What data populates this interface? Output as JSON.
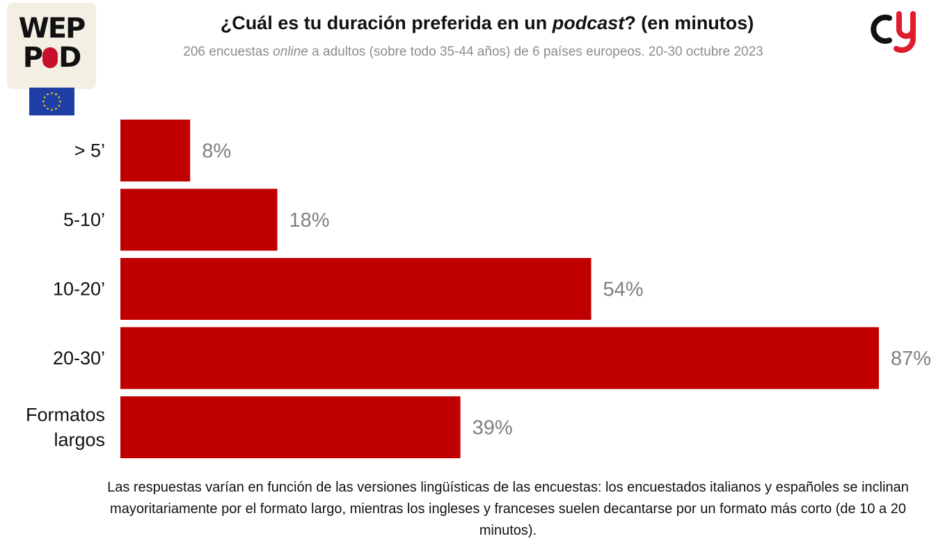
{
  "logo": {
    "line1": "WEP",
    "line2_a": "P",
    "line2_b": "D"
  },
  "colors": {
    "bar": "#c00000",
    "value_label": "#808080",
    "category_label": "#111111"
  },
  "chart_data": {
    "type": "bar",
    "orientation": "horizontal",
    "title": "¿Cuál es tu duración preferida en un podcast? (en minutos)",
    "title_parts": {
      "before": "¿Cuál es tu duración preferida en un ",
      "italic": "podcast",
      "after": "? (en minutos)"
    },
    "subtitle": "206 encuestas online a adultos (sobre todo 35-44 años) de 6 países europeos. 20-30 octubre 2023",
    "subtitle_parts": {
      "before": "206 encuestas ",
      "italic": "online",
      "after": " a adultos (sobre todo 35-44 años) de 6 países europeos. 20-30 octubre 2023"
    },
    "categories": [
      "> 5’",
      "5-10’",
      "10-20’",
      "20-30’",
      "Formatos largos"
    ],
    "category_lines": [
      [
        "> 5’"
      ],
      [
        "5-10’"
      ],
      [
        "10-20’"
      ],
      [
        "20-30’"
      ],
      [
        "Formatos",
        "largos"
      ]
    ],
    "values": [
      8,
      18,
      54,
      87,
      39
    ],
    "value_labels": [
      "8%",
      "18%",
      "54%",
      "87%",
      "39%"
    ],
    "xlim": [
      0,
      87
    ],
    "grid": false,
    "legend": false
  },
  "caption": "Las respuestas varían en función de las versiones lingüísticas de las encuestas: los encuestados italianos y españoles se inclinan mayoritariamente por el formato largo, mientras los ingleses y franceses suelen decantarse por un formato más corto (de 10 a 20 minutos)."
}
